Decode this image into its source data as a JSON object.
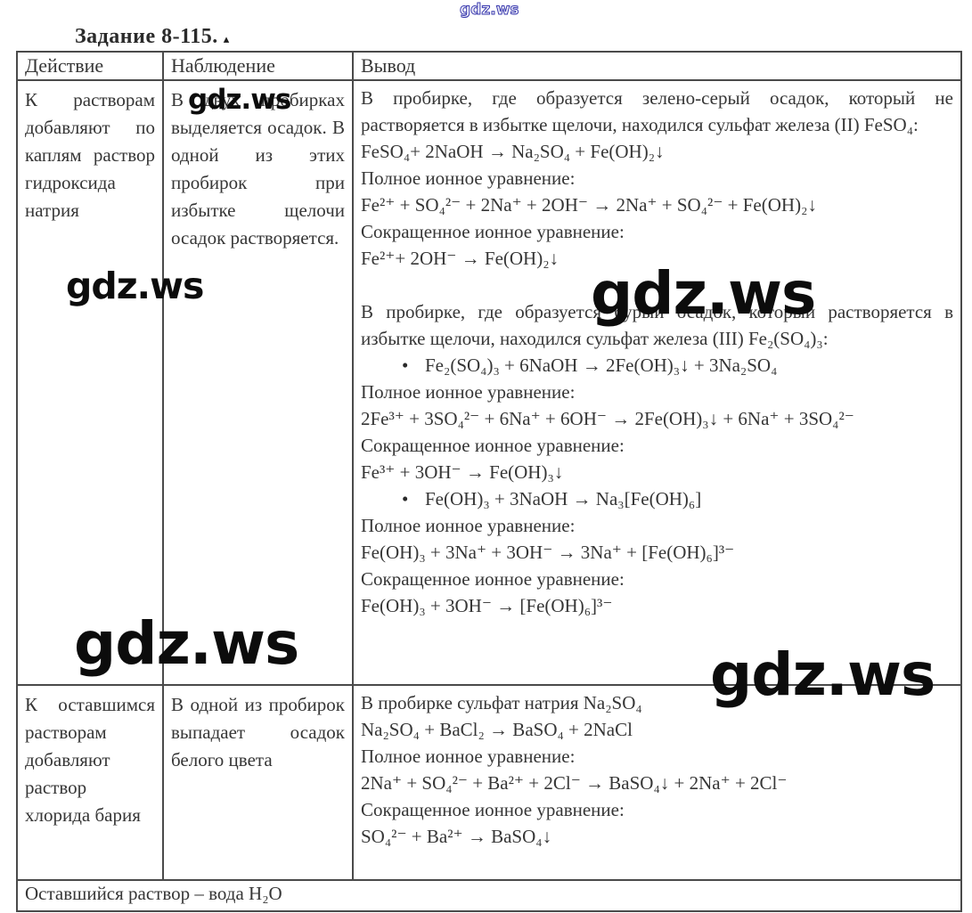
{
  "page": {
    "title": "Задание 8-115.",
    "title_mark": "▴"
  },
  "watermark": {
    "site": "gdz.ws"
  },
  "icons": {
    "bullet": "•"
  },
  "table": {
    "headers": [
      "Действие",
      "Наблюдение",
      "Вывод"
    ],
    "row1": {
      "action": "К растворам добавляют по каплям раствор гидроксида натрия",
      "observation": "В двух пробирках выделяется осадок. В одной из этих пробирок при избытке щелочи осадок растворяется.",
      "conclusion": [
        "В пробирке, где образуется зелено-серый осадок, который не растворяется в избытке щелочи, находился сульфат железа (II) FeSO₄:",
        "FeSO₄+ 2NaOH → Na₂SO₄ + Fe(OH)₂↓",
        "Полное ионное уравнение:",
        "Fe²⁺ + SO₄²⁻ + 2Na⁺ + 2OH⁻ → 2Na⁺ + SO₄²⁻ + Fe(OH)₂↓",
        "Сокращенное ионное уравнение:",
        "Fe²⁺+ 2OH⁻ → Fe(OH)₂↓",
        "В пробирке, где образуется бурый осадок, который растворяется в избытке щелочи, находился сульфат железа (III) Fe₂(SO₄)₃:",
        "Fe₂(SO₄)₃ + 6NaOH → 2Fe(OH)₃↓ + 3Na₂SO₄",
        "Полное ионное уравнение:",
        "2Fe³⁺ + 3SO₄²⁻ + 6Na⁺ + 6OH⁻ → 2Fe(OH)₃↓ + 6Na⁺ + 3SO₄²⁻",
        "Сокращенное ионное уравнение:",
        "Fe³⁺ + 3OH⁻ → Fe(OH)₃↓",
        "Fe(OH)₃ + 3NaOH → Na₃[Fe(OH)₆]",
        "Полное ионное уравнение:",
        "Fe(OH)₃  + 3Na⁺ + 3OH⁻ → 3Na⁺ + [Fe(OH)₆]³⁻",
        "Сокращенное ионное уравнение:",
        "Fe(OH)₃  + 3OH⁻ → [Fe(OH)₆]³⁻"
      ]
    },
    "row2": {
      "action": "К оставшимся растворам добавляют раствор хлорида бария",
      "observation": "В одной из пробирок выпадает осадок белого цвета",
      "conclusion": [
        "В пробирке сульфат натрия Na₂SO₄",
        "Na₂SO₄ + BaCl₂ → BaSO₄ + 2NaCl",
        "Полное ионное уравнение:",
        "2Na⁺ + SO₄²⁻ + Ba²⁺ + 2Cl⁻ → BaSO₄↓ + 2Na⁺ + 2Cl⁻",
        "Сокращенное ионное уравнение:",
        "SO₄²⁻ + Ba²⁺ → BaSO₄↓"
      ]
    },
    "footer": "Оставшийся раствор – вода H₂O"
  },
  "colors": {
    "text": "#363636",
    "border": "#4a4a4a",
    "watermark_black": "#0c0c0c",
    "watermark_blue": "#3a3aae"
  }
}
